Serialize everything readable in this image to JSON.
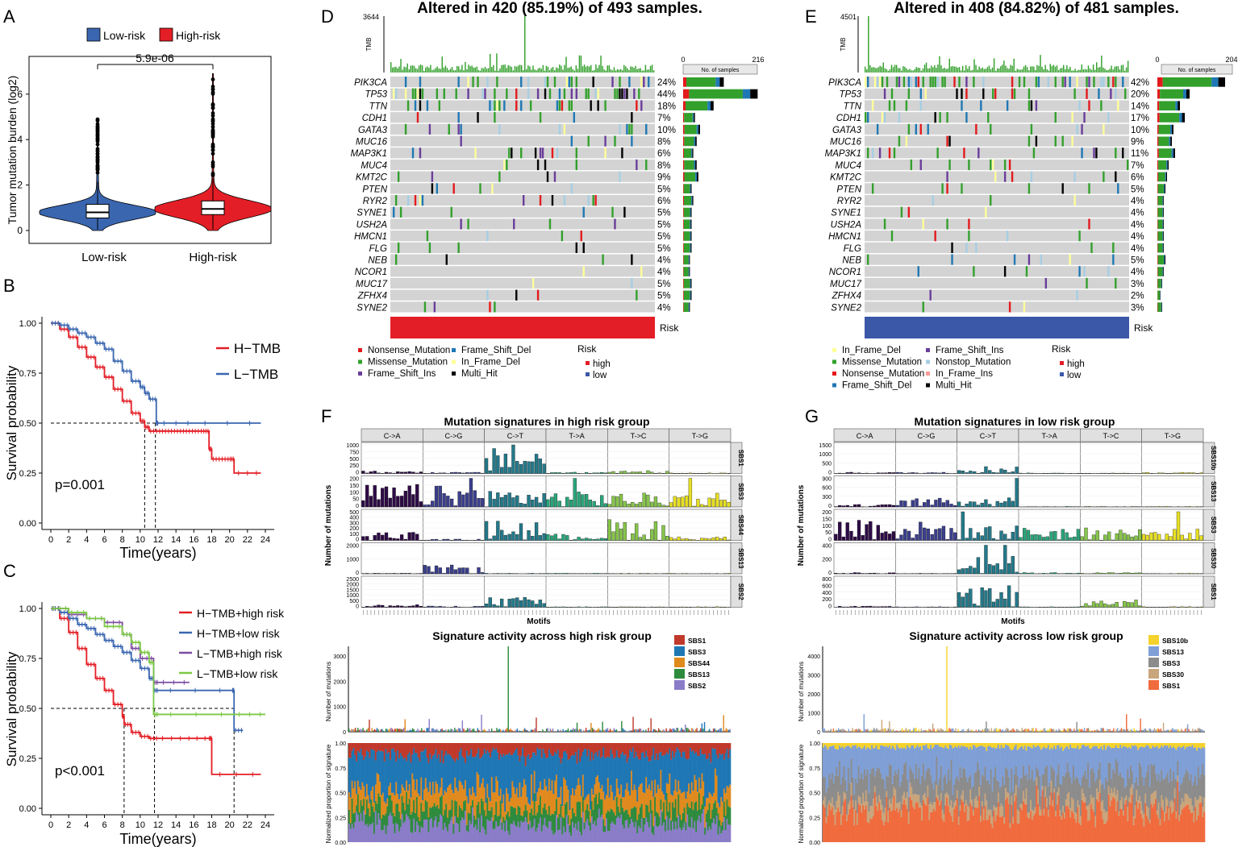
{
  "colors": {
    "low": "#3a66b0",
    "high": "#e41e26",
    "grid": "#dcdcdc",
    "grey": "#d3d3d3",
    "missense": "#33a02c",
    "nonsense": "#e31a1c",
    "fsdel": "#1f78b4",
    "fsins": "#6a3d9a",
    "ifdel": "#ffff99",
    "ifins": "#fb9a99",
    "multi": "#000000",
    "nonstop": "#a6cee3",
    "lightgreen": "#7cc87c"
  },
  "panels": {
    "A": {
      "letter": "A",
      "legend": [
        "Low-risk",
        "High-risk"
      ],
      "ylabel": "Tumor mutation burden (log2)",
      "yticks": [
        "0",
        "2",
        "4",
        "6"
      ],
      "categories": [
        "Low-risk",
        "High-risk"
      ],
      "pvalue": "5.9e-06"
    },
    "B": {
      "letter": "B",
      "ylabel": "Survival probability",
      "xlabel": "Time(years)",
      "yticks": [
        "0.00",
        "0.25",
        "0.50",
        "0.75",
        "1.00"
      ],
      "xticks": [
        "0",
        "2",
        "4",
        "6",
        "8",
        "10",
        "12",
        "14",
        "16",
        "18",
        "20",
        "22",
        "24"
      ],
      "pvalue": "p=0.001",
      "legend": [
        "H−TMB",
        "L−TMB"
      ]
    },
    "C": {
      "letter": "C",
      "ylabel": "Survival probability",
      "xlabel": "Time(years)",
      "yticks": [
        "0.00",
        "0.25",
        "0.50",
        "0.75",
        "1.00"
      ],
      "xticks": [
        "0",
        "2",
        "4",
        "6",
        "8",
        "10",
        "12",
        "14",
        "16",
        "18",
        "20",
        "22",
        "24"
      ],
      "pvalue": "p<0.001",
      "legend": [
        "H−TMB+high risk",
        "H−TMB+low risk",
        "L−TMB+high risk",
        "L−TMB+low risk"
      ]
    },
    "D": {
      "letter": "D",
      "title": "Altered in 420 (85.19%) of 493 samples.",
      "tmb_max": "3644",
      "tmb_label": "TMB",
      "bar_ticks": [
        "0",
        "216"
      ],
      "bar_label": "No. of samples",
      "risk_label": "Risk",
      "genes": [
        "PIK3CA",
        "TP53",
        "TTN",
        "CDH1",
        "GATA3",
        "MUC16",
        "MAP3K1",
        "MUC4",
        "KMT2C",
        "PTEN",
        "RYR2",
        "SYNE1",
        "USH2A",
        "HMCN1",
        "FLG",
        "NEB",
        "NCOR1",
        "MUC17",
        "ZFHX4",
        "SYNE2"
      ],
      "pcts": [
        "24%",
        "44%",
        "18%",
        "7%",
        "10%",
        "8%",
        "6%",
        "8%",
        "9%",
        "5%",
        "6%",
        "5%",
        "5%",
        "5%",
        "5%",
        "4%",
        "4%",
        "5%",
        "5%",
        "4%"
      ],
      "legend_items": [
        "Nonsense_Mutation",
        "Missense_Mutation",
        "Frame_Shift_Ins",
        "Frame_Shift_Del",
        "In_Frame_Del",
        "Multi_Hit"
      ],
      "risk_legend_title": "Risk",
      "risk_levels": [
        "high",
        "low"
      ]
    },
    "E": {
      "letter": "E",
      "title": "Altered in 408 (84.82%) of 481 samples.",
      "tmb_max": "4501",
      "tmb_label": "TMB",
      "bar_ticks": [
        "0",
        "204"
      ],
      "bar_label": "No. of samples",
      "risk_label": "Risk",
      "genes": [
        "PIK3CA",
        "TP53",
        "TTN",
        "CDH1",
        "GATA3",
        "MUC16",
        "MAP3K1",
        "MUC4",
        "KMT2C",
        "PTEN",
        "RYR2",
        "SYNE1",
        "USH2A",
        "HMCN1",
        "FLG",
        "NEB",
        "NCOR1",
        "MUC17",
        "ZFHX4",
        "SYNE2"
      ],
      "pcts": [
        "42%",
        "20%",
        "14%",
        "17%",
        "10%",
        "9%",
        "11%",
        "7%",
        "6%",
        "5%",
        "4%",
        "4%",
        "4%",
        "4%",
        "4%",
        "5%",
        "4%",
        "3%",
        "2%",
        "3%"
      ],
      "legend_items": [
        "In_Frame_Del",
        "Missense_Mutation",
        "Nonsense_Mutation",
        "Frame_Shift_Del",
        "Frame_Shift_Ins",
        "Nonstop_Mutation",
        "In_Frame_Ins",
        "Multi_Hit"
      ],
      "risk_legend_title": "Risk",
      "risk_levels": [
        "high",
        "low"
      ]
    },
    "F": {
      "letter": "F",
      "title": "Mutation signatures in high risk group",
      "headers": [
        "C->A",
        "C->G",
        "C->T",
        "T->A",
        "T->C",
        "T->G"
      ],
      "signatures": [
        "SBS1",
        "SBS3",
        "SBS44",
        "SBS13",
        "SBS2"
      ],
      "yticks": [
        [
          "1000",
          "750",
          "500",
          "250",
          "0"
        ],
        [
          "200",
          "150",
          "100",
          "50",
          "0"
        ],
        [
          "500",
          "400",
          "300",
          "200",
          "100",
          "0"
        ],
        [
          "2000",
          "1000",
          "0"
        ],
        [
          "2500",
          "2000",
          "1500",
          "1000",
          "500",
          "0"
        ]
      ],
      "ylabel": "Number of mutations",
      "xlabel": "Motifs",
      "activity_title": "Signature activity across high risk group",
      "activity_legend": [
        "SBS1",
        "SBS3",
        "SBS44",
        "SBS13",
        "SBS2"
      ],
      "activity_yticks": [
        "3000",
        "2000",
        "1000",
        "0"
      ],
      "activity_ylabel": "Number of mutations",
      "prop_ylabel": "Normalized proportion of signature",
      "prop_yticks": [
        "1.00",
        "0.75",
        "0.50",
        "0.25",
        "0.00"
      ]
    },
    "G": {
      "letter": "G",
      "title": "Mutation signatures in low risk group",
      "headers": [
        "C->A",
        "C->G",
        "C->T",
        "T->A",
        "T->C",
        "T->G"
      ],
      "signatures": [
        "SBS10b",
        "SBS13",
        "SBS3",
        "SBS30",
        "SBS1"
      ],
      "yticks": [
        [
          "1500",
          "1000",
          "500",
          "0"
        ],
        [
          "900",
          "600",
          "300",
          "0"
        ],
        [
          "200",
          "150",
          "100",
          "50",
          "0"
        ],
        [
          "400",
          "200",
          "0"
        ],
        [
          "800",
          "600",
          "400",
          "200",
          "0"
        ]
      ],
      "ylabel": "Number of mutations",
      "xlabel": "Motifs",
      "activity_title": "Signature activity across low risk group",
      "activity_legend": [
        "SBS10b",
        "SBS13",
        "SBS3",
        "SBS30",
        "SBS1"
      ],
      "activity_yticks": [
        "4000",
        "3000",
        "2000",
        "1000",
        "0"
      ],
      "activity_ylabel": "Number of mutations",
      "prop_ylabel": "Normalized proportion of signature",
      "prop_yticks": [
        "1.00",
        "0.75",
        "0.50",
        "0.25",
        "0.00"
      ]
    }
  },
  "chart_data": [
    {
      "type": "violin",
      "panel": "A",
      "categories": [
        "Low-risk",
        "High-risk"
      ],
      "median": [
        0.8,
        0.95
      ],
      "q1": [
        0.55,
        0.7
      ],
      "q3": [
        1.15,
        1.3
      ],
      "max": [
        4.9,
        6.9
      ],
      "ylim": [
        0,
        7
      ],
      "pvalue": "5.9e-06"
    },
    {
      "type": "line",
      "panel": "B",
      "xlim": [
        0,
        24
      ],
      "ylim": [
        0,
        1
      ],
      "series": [
        {
          "name": "H-TMB",
          "x": [
            0,
            1,
            2,
            3,
            4,
            5,
            6,
            7,
            8,
            9,
            10,
            10.5,
            11,
            12,
            13,
            14,
            15,
            16,
            17,
            17.7,
            18,
            19,
            20,
            20.5,
            23.5
          ],
          "y": [
            1,
            0.97,
            0.93,
            0.88,
            0.83,
            0.78,
            0.73,
            0.67,
            0.61,
            0.55,
            0.51,
            0.48,
            0.46,
            0.46,
            0.46,
            0.46,
            0.46,
            0.46,
            0.46,
            0.37,
            0.32,
            0.32,
            0.32,
            0.25,
            0.25
          ]
        },
        {
          "name": "L-TMB",
          "x": [
            0,
            1,
            2,
            3,
            4,
            5,
            6,
            7,
            8,
            9,
            10,
            10.5,
            11,
            11.8,
            12,
            16,
            23.5
          ],
          "y": [
            1,
            0.99,
            0.97,
            0.95,
            0.93,
            0.9,
            0.87,
            0.81,
            0.76,
            0.71,
            0.68,
            0.65,
            0.62,
            0.5,
            0.5,
            0.5,
            0.5
          ]
        }
      ]
    },
    {
      "type": "line",
      "panel": "C",
      "xlim": [
        0,
        24
      ],
      "ylim": [
        0,
        1
      ],
      "series": [
        {
          "name": "H-TMB+high risk",
          "x": [
            0,
            1,
            2,
            3,
            4,
            5,
            6,
            7,
            8,
            8.2,
            9,
            10,
            11,
            12,
            15,
            17.7,
            18,
            23.5
          ],
          "y": [
            1,
            0.95,
            0.88,
            0.8,
            0.72,
            0.65,
            0.59,
            0.52,
            0.46,
            0.42,
            0.38,
            0.36,
            0.35,
            0.35,
            0.35,
            0.35,
            0.17,
            0.17
          ]
        },
        {
          "name": "H-TMB+low risk",
          "x": [
            0,
            1,
            2,
            3,
            4,
            5,
            6,
            7,
            8,
            9,
            10,
            11,
            11.5,
            12,
            20.3,
            20.5,
            21.5
          ],
          "y": [
            1,
            0.98,
            0.95,
            0.92,
            0.9,
            0.87,
            0.84,
            0.81,
            0.78,
            0.74,
            0.7,
            0.65,
            0.59,
            0.59,
            0.59,
            0.39,
            0.39
          ]
        },
        {
          "name": "L-TMB+high risk",
          "x": [
            0,
            2,
            4,
            6,
            8,
            9,
            10,
            11.5,
            12,
            15.5
          ],
          "y": [
            1,
            0.97,
            0.95,
            0.93,
            0.87,
            0.8,
            0.75,
            0.63,
            0.63,
            0.63
          ]
        },
        {
          "name": "L-TMB+low risk",
          "x": [
            0,
            2,
            4,
            6,
            8,
            9,
            10,
            11,
            11.5,
            12,
            20.5,
            24
          ],
          "y": [
            1,
            0.98,
            0.95,
            0.91,
            0.87,
            0.83,
            0.78,
            0.73,
            0.47,
            0.47,
            0.47,
            0.47
          ]
        }
      ]
    }
  ]
}
